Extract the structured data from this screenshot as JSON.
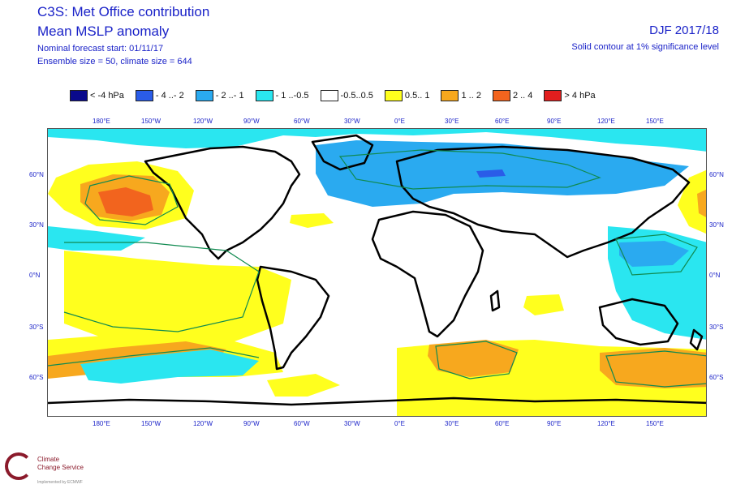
{
  "header": {
    "title_line1": "C3S: Met Office contribution",
    "title_line2": "Mean MSLP anomaly",
    "meta_line1": "Nominal forecast start: 01/11/17",
    "meta_line2": "Ensemble size = 50, climate size = 644",
    "season": "DJF 2017/18",
    "significance": "Solid contour at 1% significance level"
  },
  "legend": [
    {
      "label": "< -4 hPa",
      "color": "#0a0a8c"
    },
    {
      "label": "- 4 ..- 2",
      "color": "#2a5ce8"
    },
    {
      "label": "- 2 ..- 1",
      "color": "#2aaaf0"
    },
    {
      "label": "- 1 ..-0.5",
      "color": "#2ae6f0"
    },
    {
      "label": "-0.5..0.5",
      "color": "#ffffff"
    },
    {
      "label": "0.5.. 1",
      "color": "#ffff1e"
    },
    {
      "label": "1 .. 2",
      "color": "#f7a81e"
    },
    {
      "label": "2 .. 4",
      "color": "#f2641e"
    },
    {
      "label": "> 4 hPa",
      "color": "#e21e1e"
    }
  ],
  "axes": {
    "lon_labels": [
      "180°E",
      "150°W",
      "120°W",
      "90°W",
      "60°W",
      "30°W",
      "0°E",
      "30°E",
      "60°E",
      "90°E",
      "120°E",
      "150°E"
    ],
    "lat_labels": [
      "60°N",
      "30°N",
      "0°N",
      "30°S",
      "60°S"
    ]
  },
  "logo": {
    "line1": "Climate",
    "line2": "Change Service",
    "line3": "Implemented by ECMWF"
  }
}
